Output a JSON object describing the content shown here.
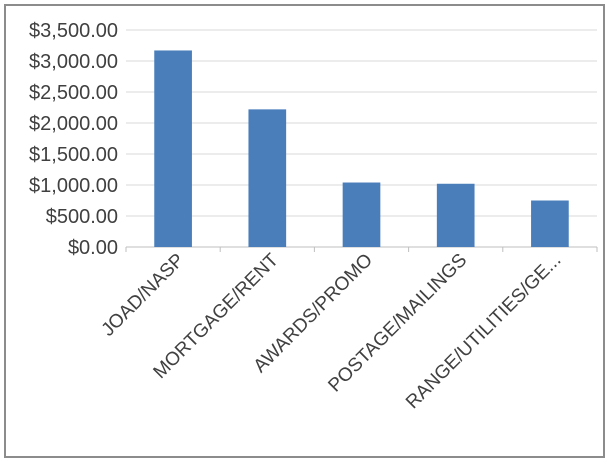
{
  "chart_data": {
    "type": "bar",
    "title": "",
    "xlabel": "",
    "ylabel": "",
    "categories": [
      "JOAD/NASP",
      "MORTGAGE/RENT",
      "AWARDS/PROMO",
      "POSTAGE/MAILINGS",
      "RANGE/UTILITIES/GE..."
    ],
    "values": [
      3170,
      2220,
      1040,
      1020,
      750
    ],
    "ylim": [
      0,
      3500
    ],
    "y_ticks": [
      "$0.00",
      "$500.00",
      "$1,000.00",
      "$1,500.00",
      "$2,000.00",
      "$2,500.00",
      "$3,000.00",
      "$3,500.00"
    ],
    "y_tick_values": [
      0,
      500,
      1000,
      1500,
      2000,
      2500,
      3000,
      3500
    ],
    "grid": true,
    "legend": "none",
    "colors": {
      "bar": "#4a7ebb",
      "grid": "#d9d9d9",
      "text": "#404040",
      "frame": "#8c8c8c"
    }
  }
}
